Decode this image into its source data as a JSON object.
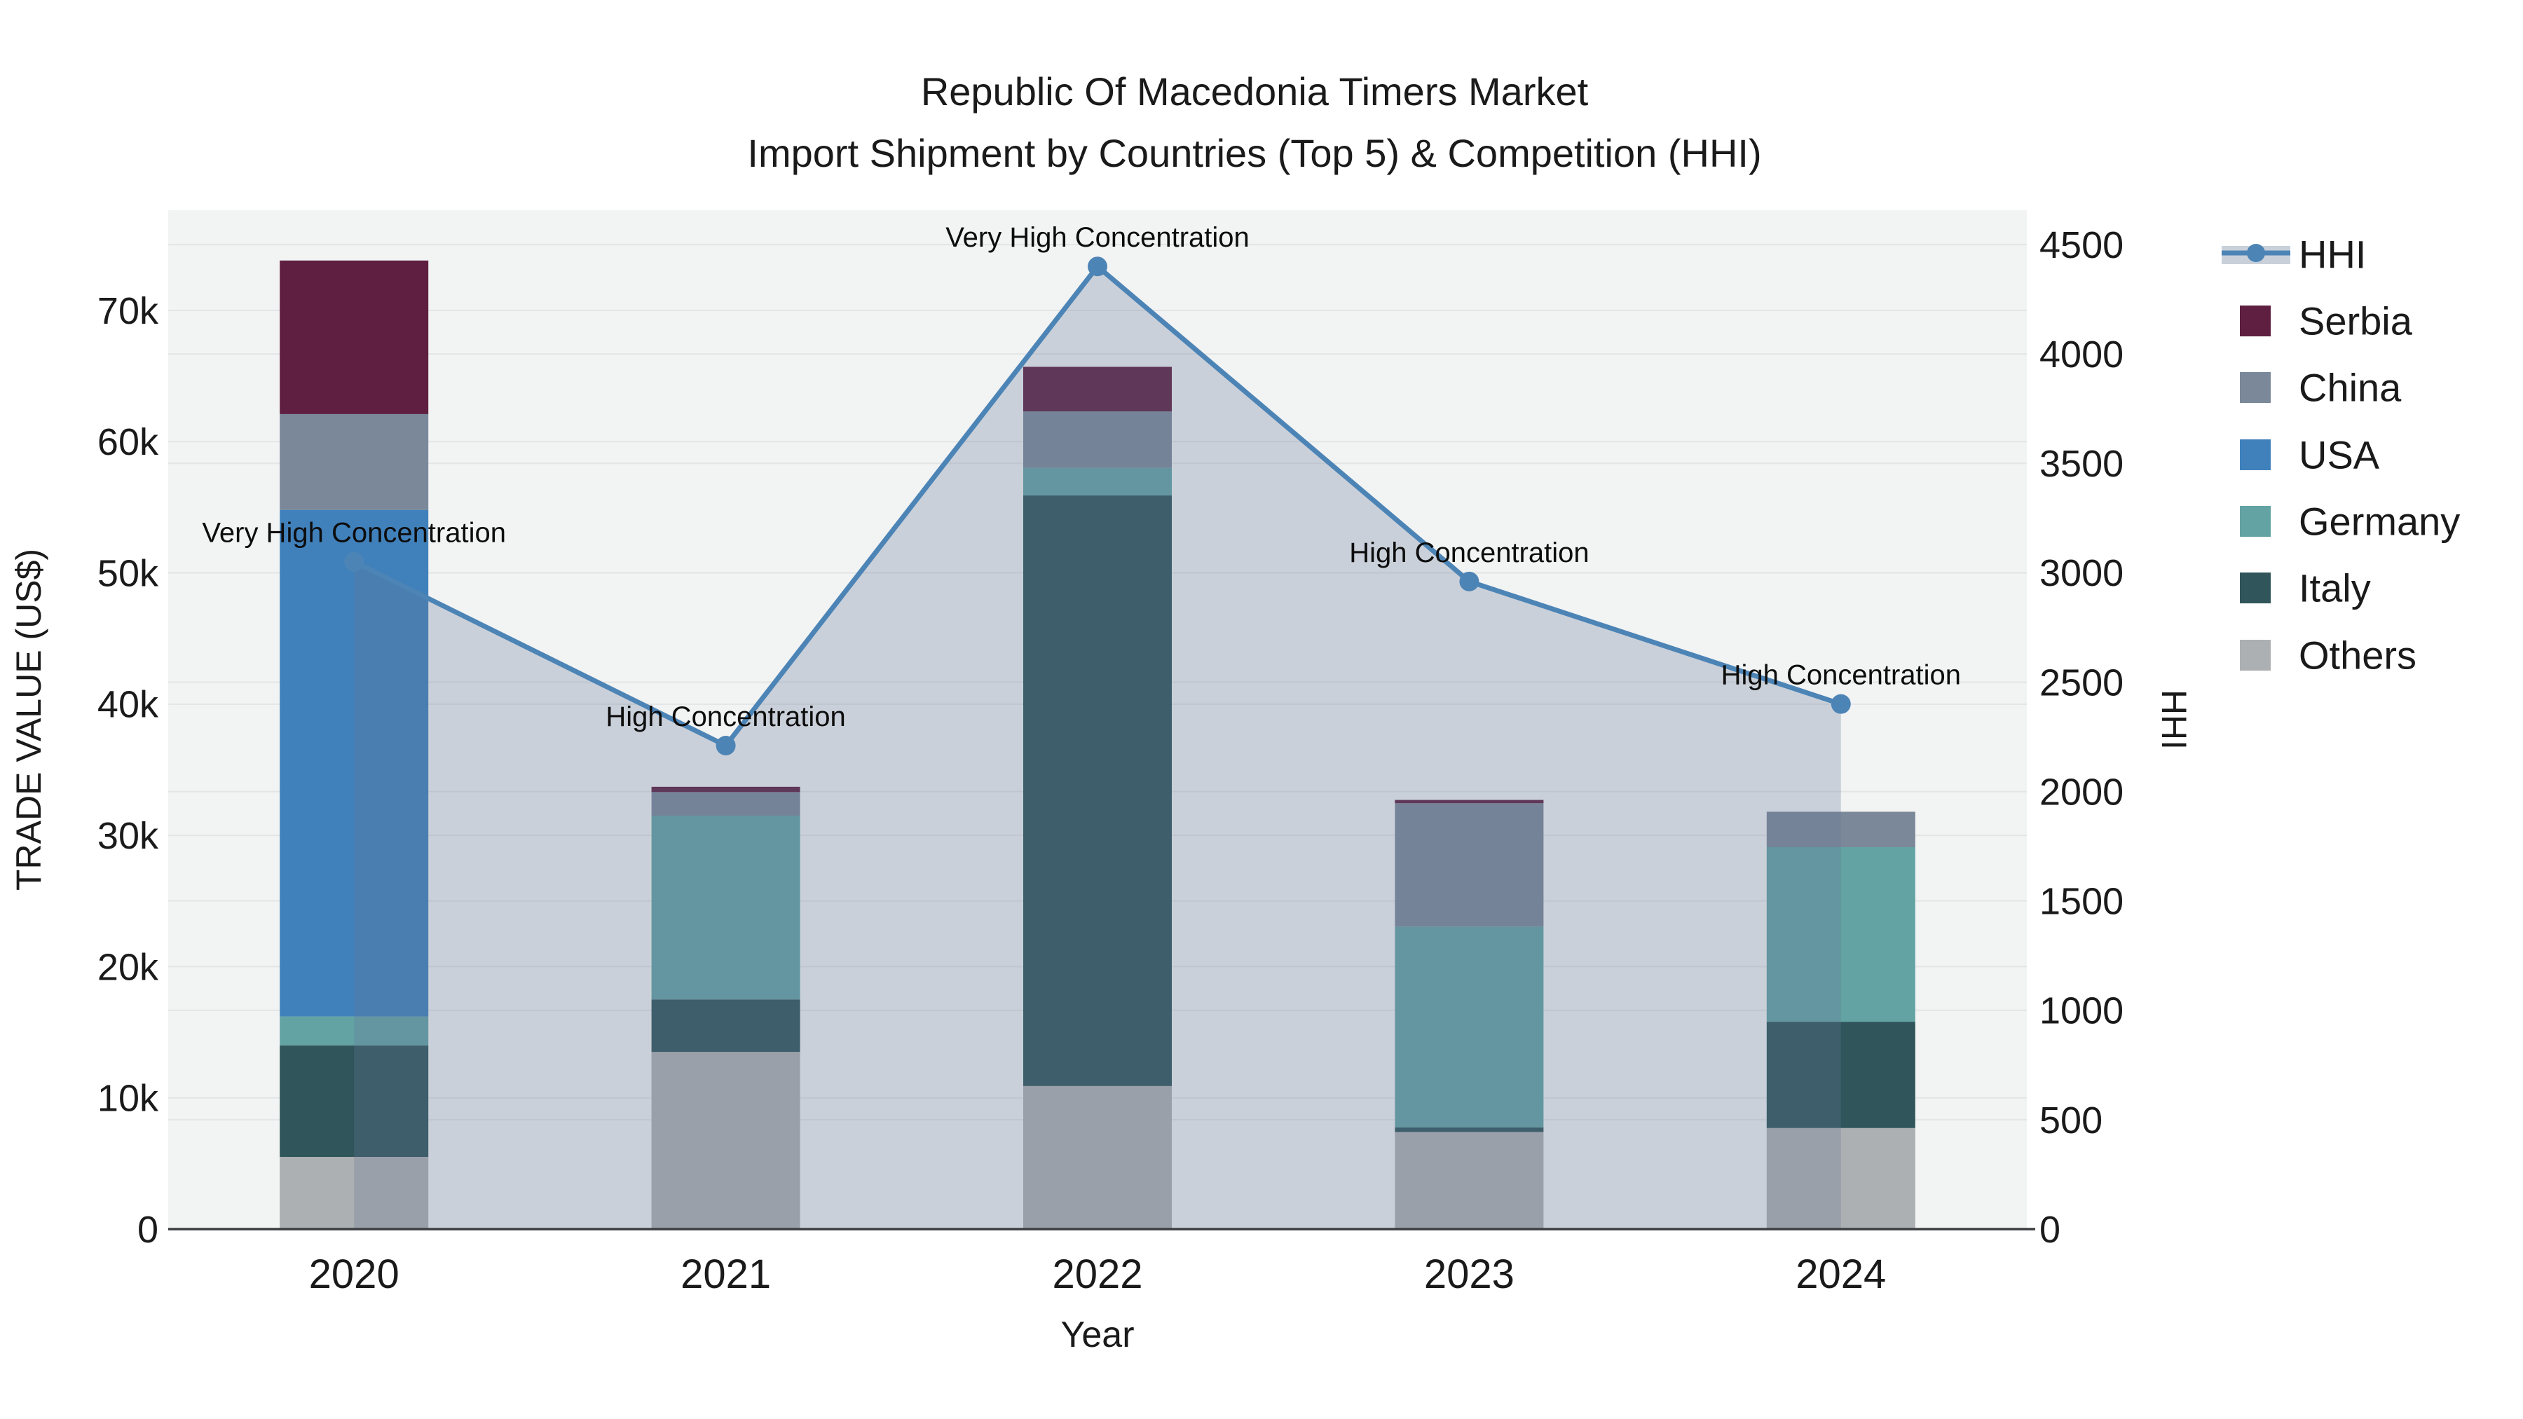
{
  "title": {
    "line1": "Republic Of Macedonia Timers Market",
    "line2": "Import Shipment by Countries (Top 5) & Competition (HHI)"
  },
  "colors": {
    "plot_background": "#F2F3F3",
    "gridline": "#E3E5E6",
    "axis_line": "#3C3F42",
    "text": "#1A1A1A",
    "hhi_line": "#4C84B6",
    "hhi_area_fill": "rgba(100,120,150,0.28)",
    "serbia": "#5E1F41",
    "china": "#7A8899",
    "usa": "#4181BB",
    "germany": "#63A3A4",
    "italy": "#30555A",
    "others": "#ADB0B2"
  },
  "legend": {
    "items": [
      {
        "label": "HHI",
        "type": "line",
        "color": "#4C84B6"
      },
      {
        "label": "Serbia",
        "type": "swatch",
        "color": "#5E1F41"
      },
      {
        "label": "China",
        "type": "swatch",
        "color": "#7A8899"
      },
      {
        "label": "USA",
        "type": "swatch",
        "color": "#4181BB"
      },
      {
        "label": "Germany",
        "type": "swatch",
        "color": "#63A3A4"
      },
      {
        "label": "Italy",
        "type": "swatch",
        "color": "#30555A"
      },
      {
        "label": "Others",
        "type": "swatch",
        "color": "#ADB0B2"
      }
    ]
  },
  "chart_data": {
    "type": "combo-stacked-bar-with-line-area",
    "title": "Republic Of Macedonia Timers Market — Import Shipment by Countries (Top 5) & Competition (HHI)",
    "categories": [
      "2020",
      "2021",
      "2022",
      "2023",
      "2024"
    ],
    "xlabel": "Year",
    "bar_value_unit": "US$",
    "series": [
      {
        "name": "Others",
        "color": "#ADB0B2",
        "values": [
          5500,
          13500,
          10900,
          7400,
          7700
        ]
      },
      {
        "name": "Italy",
        "color": "#30555A",
        "values": [
          8500,
          4000,
          45000,
          350,
          8100
        ]
      },
      {
        "name": "Germany",
        "color": "#63A3A4",
        "values": [
          2200,
          14000,
          2100,
          15300,
          13300
        ]
      },
      {
        "name": "USA",
        "color": "#4181BB",
        "values": [
          38600,
          0,
          0,
          0,
          0
        ]
      },
      {
        "name": "China",
        "color": "#7A8899",
        "values": [
          7300,
          1800,
          4300,
          9400,
          2700
        ]
      },
      {
        "name": "Serbia",
        "color": "#5E1F41",
        "values": [
          11700,
          400,
          3400,
          250,
          0
        ]
      }
    ],
    "stack_totals": [
      73800,
      33700,
      65700,
      32700,
      31800
    ],
    "line_series": {
      "name": "HHI",
      "values": [
        3050,
        2210,
        4400,
        2960,
        2400
      ]
    },
    "annotations": [
      "Very High Concentration",
      "High Concentration",
      "Very High Concentration",
      "High Concentration",
      "High Concentration"
    ],
    "y_left": {
      "title": "TRADE VALUE (US$)",
      "tick_values": [
        0,
        10000,
        20000,
        30000,
        40000,
        50000,
        60000,
        70000
      ],
      "tick_labels": [
        "0",
        "10k",
        "20k",
        "30k",
        "40k",
        "50k",
        "60k",
        "70k"
      ],
      "range": [
        0,
        77633
      ]
    },
    "y_right": {
      "title": "HHI",
      "tick_values": [
        0,
        500,
        1000,
        1500,
        2000,
        2500,
        3000,
        3500,
        4000,
        4500
      ],
      "tick_labels": [
        "0",
        "500",
        "1000",
        "1500",
        "2000",
        "2500",
        "3000",
        "3500",
        "4000",
        "4500"
      ],
      "range": [
        0,
        4657
      ]
    },
    "legend_position": "right",
    "grid": true
  }
}
